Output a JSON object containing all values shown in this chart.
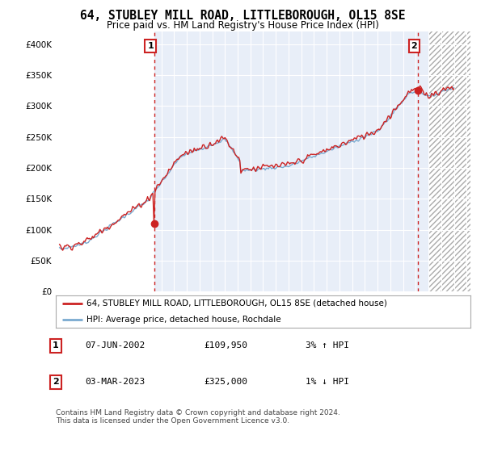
{
  "title": "64, STUBLEY MILL ROAD, LITTLEBOROUGH, OL15 8SE",
  "subtitle": "Price paid vs. HM Land Registry's House Price Index (HPI)",
  "ylim": [
    0,
    420000
  ],
  "yticks": [
    0,
    50000,
    100000,
    150000,
    200000,
    250000,
    300000,
    350000,
    400000
  ],
  "ytick_labels": [
    "£0",
    "£50K",
    "£100K",
    "£150K",
    "£200K",
    "£250K",
    "£300K",
    "£350K",
    "£400K"
  ],
  "background_color": "#ffffff",
  "plot_background": "#e8eef8",
  "grid_color": "#ffffff",
  "hpi_color": "#7aaad0",
  "price_color": "#cc2222",
  "ann1_x": 2002.44,
  "ann1_y": 109950,
  "ann2_x": 2023.17,
  "ann2_y": 325000,
  "hatch_start": 2024.0,
  "xmin": 1995,
  "xmax": 2026,
  "legend_line1": "64, STUBLEY MILL ROAD, LITTLEBOROUGH, OL15 8SE (detached house)",
  "legend_line2": "HPI: Average price, detached house, Rochdale",
  "footer": "Contains HM Land Registry data © Crown copyright and database right 2024.\nThis data is licensed under the Open Government Licence v3.0.",
  "table_rows": [
    {
      "num": "1",
      "date": "07-JUN-2002",
      "price": "£109,950",
      "hpi": "3% ↑ HPI"
    },
    {
      "num": "2",
      "date": "03-MAR-2023",
      "price": "£325,000",
      "hpi": "1% ↓ HPI"
    }
  ]
}
